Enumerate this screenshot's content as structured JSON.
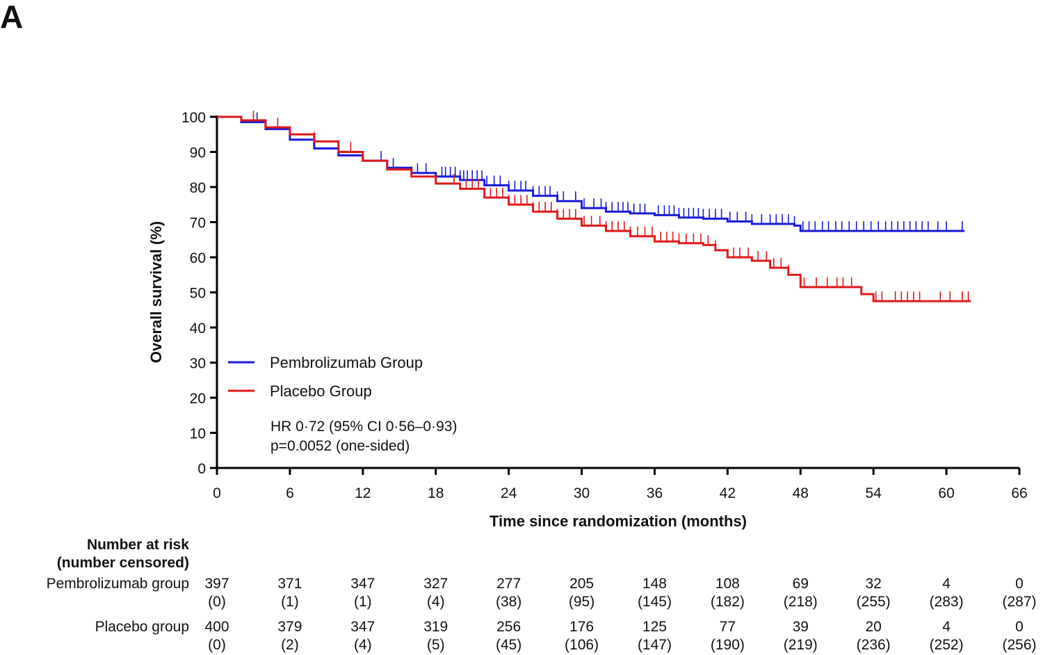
{
  "panel_label": "A",
  "chart_data": {
    "type": "line",
    "subtype": "kaplan-meier",
    "xlabel": "Time since randomization (months)",
    "ylabel": "Overall survival (%)",
    "xlim": [
      0,
      66
    ],
    "ylim": [
      0,
      100
    ],
    "xticks": [
      0,
      6,
      12,
      18,
      24,
      30,
      36,
      42,
      48,
      54,
      60,
      66
    ],
    "yticks": [
      0,
      10,
      20,
      30,
      40,
      50,
      60,
      70,
      80,
      90,
      100
    ],
    "grid": false,
    "legend_position": "bottom-left",
    "series": [
      {
        "name": "Pembrolizumab Group",
        "color": "#1a1adb",
        "points": [
          [
            0,
            100
          ],
          [
            2,
            98.5
          ],
          [
            4,
            96.5
          ],
          [
            6,
            93.5
          ],
          [
            8,
            91
          ],
          [
            10,
            89
          ],
          [
            12,
            87.5
          ],
          [
            14,
            85.5
          ],
          [
            16,
            84
          ],
          [
            18,
            83
          ],
          [
            20,
            82
          ],
          [
            22,
            80.5
          ],
          [
            24,
            79
          ],
          [
            26,
            77.5
          ],
          [
            28,
            76
          ],
          [
            30,
            74
          ],
          [
            32,
            73
          ],
          [
            34,
            72.5
          ],
          [
            36,
            72
          ],
          [
            38,
            71.3
          ],
          [
            40,
            71
          ],
          [
            42,
            70.2
          ],
          [
            44,
            69.5
          ],
          [
            46,
            69.5
          ],
          [
            47.5,
            69
          ],
          [
            48,
            67.5
          ],
          [
            61.5,
            67.5
          ]
        ],
        "censor_months": [
          3.3,
          13.5,
          14.5,
          16.5,
          17.2,
          18.5,
          18.8,
          19.2,
          19.6,
          20,
          20.3,
          20.6,
          21,
          21.4,
          21.8,
          22.2,
          22.8,
          23.3,
          24,
          24.5,
          25,
          25.4,
          26,
          26.5,
          27,
          27.4,
          28,
          28.5,
          29.5,
          30.2,
          31,
          31.6,
          32,
          32.5,
          33,
          33.4,
          33.8,
          34.3,
          34.8,
          35.2,
          36.3,
          36.8,
          37.2,
          37.6,
          38,
          38.4,
          38.8,
          39.2,
          39.6,
          40,
          40.5,
          41,
          41.5,
          42.2,
          42.8,
          43.5,
          44,
          44.8,
          45.5,
          46,
          46.5,
          47,
          47.5,
          48.2,
          48.7,
          49.2,
          49.8,
          50.3,
          50.9,
          51.4,
          52,
          52.6,
          53.2,
          53.8,
          54.4,
          55,
          55.5,
          56,
          56.5,
          57,
          57.5,
          58,
          58.5,
          59.3,
          60,
          61.3
        ]
      },
      {
        "name": "Placebo Group",
        "color": "#e01818",
        "points": [
          [
            0,
            100
          ],
          [
            2,
            99
          ],
          [
            4,
            97
          ],
          [
            6,
            95
          ],
          [
            8,
            93
          ],
          [
            10,
            90
          ],
          [
            12,
            87.5
          ],
          [
            14,
            85
          ],
          [
            16,
            83
          ],
          [
            18,
            81
          ],
          [
            20,
            79.5
          ],
          [
            22,
            77
          ],
          [
            24,
            75
          ],
          [
            26,
            73
          ],
          [
            28,
            71
          ],
          [
            30,
            69
          ],
          [
            32,
            67.5
          ],
          [
            34,
            66
          ],
          [
            36,
            64.5
          ],
          [
            38,
            64
          ],
          [
            40,
            63.5
          ],
          [
            41,
            62
          ],
          [
            42,
            60
          ],
          [
            44,
            59
          ],
          [
            45.5,
            57
          ],
          [
            47,
            55
          ],
          [
            48,
            51.5
          ],
          [
            52.5,
            51.5
          ],
          [
            53,
            49.5
          ],
          [
            54,
            47.5
          ],
          [
            62,
            47.5
          ]
        ],
        "censor_months": [
          3,
          5,
          8,
          11,
          19.5,
          20.5,
          21,
          21.5,
          22,
          22.5,
          23,
          23.5,
          24,
          24.5,
          25,
          25.5,
          26,
          26.5,
          27,
          27.5,
          28,
          28.5,
          29,
          29.5,
          30.2,
          30.8,
          31.5,
          32,
          32.5,
          33,
          33.5,
          34,
          34.6,
          35.2,
          35.8,
          36.5,
          37,
          37.5,
          38,
          38.6,
          39.2,
          39.8,
          40.4,
          41,
          42.5,
          43,
          43.7,
          44.5,
          45.2,
          45.8,
          46.4,
          47,
          48.3,
          49.3,
          50.2,
          51,
          51.5,
          52.2,
          54.2,
          54.7,
          55.8,
          56.3,
          56.8,
          57.3,
          57.8,
          59.5,
          60.3,
          61.3,
          61.8
        ]
      }
    ],
    "annotation": {
      "hr": "HR 0·72 (95% CI 0·56–0·93)",
      "p": "p=0.0052 (one-sided)"
    },
    "risk_table": {
      "title_line1": "Number at risk",
      "title_line2": "(number censored)",
      "groups": [
        {
          "name": "Pembrolizumab group",
          "at_risk": [
            "397",
            "371",
            "347",
            "327",
            "277",
            "205",
            "148",
            "108",
            "69",
            "32",
            "4",
            "0"
          ],
          "censored": [
            "(0)",
            "(1)",
            "(1)",
            "(4)",
            "(38)",
            "(95)",
            "(145)",
            "(182)",
            "(218)",
            "(255)",
            "(283)",
            "(287)"
          ]
        },
        {
          "name": "Placebo group",
          "at_risk": [
            "400",
            "379",
            "347",
            "319",
            "256",
            "176",
            "125",
            "77",
            "39",
            "20",
            "4",
            "0"
          ],
          "censored": [
            "(0)",
            "(2)",
            "(4)",
            "(5)",
            "(45)",
            "(106)",
            "(147)",
            "(190)",
            "(219)",
            "(236)",
            "(252)",
            "(256)"
          ]
        }
      ]
    }
  }
}
